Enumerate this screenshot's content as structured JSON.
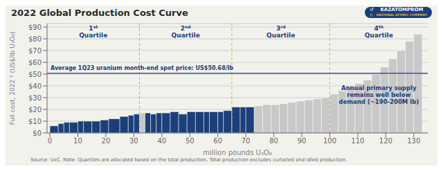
{
  "chart_data": {
    "type": "bar",
    "title": "2022 Global Production Cost Curve",
    "x_label": "million pounds U₃O₈",
    "y_label": "Full cost, 2022 ¹ (US$/lb U₃O₈)",
    "x": [
      0,
      3,
      5,
      7,
      10,
      12,
      15,
      18,
      21,
      25,
      28,
      30,
      32,
      34,
      36,
      38,
      40,
      43,
      46,
      49,
      52,
      55,
      57,
      60,
      62,
      65,
      68,
      70,
      73,
      76,
      79,
      82,
      85,
      88,
      91,
      94,
      97,
      100,
      103,
      106,
      109,
      112,
      115,
      118,
      121,
      124,
      127,
      130
    ],
    "widths": [
      3,
      2,
      2,
      3,
      2,
      3,
      3,
      3,
      4,
      3,
      2,
      2,
      2,
      2,
      2,
      2,
      3,
      3,
      3,
      3,
      3,
      2,
      3,
      2,
      3,
      3,
      2,
      3,
      3,
      3,
      3,
      3,
      3,
      3,
      3,
      3,
      3,
      3,
      3,
      3,
      3,
      3,
      3,
      3,
      3,
      3,
      3,
      3
    ],
    "values": [
      6,
      8,
      9,
      9,
      10,
      10,
      10,
      11,
      12,
      14,
      15,
      16,
      17,
      17,
      16,
      17,
      17,
      18,
      16,
      18,
      18,
      18,
      18,
      18,
      19,
      22,
      22,
      22,
      23,
      24,
      24,
      25,
      26,
      27,
      28,
      29,
      30,
      33,
      36,
      39,
      42,
      45,
      50,
      56,
      63,
      70,
      78,
      84
    ],
    "colors": [
      "#1b3f7a",
      "#1b3f7a",
      "#1b3f7a",
      "#1b3f7a",
      "#1b3f7a",
      "#1b3f7a",
      "#1b3f7a",
      "#1b3f7a",
      "#1b3f7a",
      "#1b3f7a",
      "#1b3f7a",
      "#1b3f7a",
      "#c8c8c8",
      "#1b3f7a",
      "#1b3f7a",
      "#1b3f7a",
      "#1b3f7a",
      "#1b3f7a",
      "#1b3f7a",
      "#1b3f7a",
      "#1b3f7a",
      "#1b3f7a",
      "#1b3f7a",
      "#1b3f7a",
      "#1b3f7a",
      "#1b3f7a",
      "#1b3f7a",
      "#1b3f7a",
      "#c8c8c8",
      "#c8c8c8",
      "#c8c8c8",
      "#c8c8c8",
      "#c8c8c8",
      "#c8c8c8",
      "#c8c8c8",
      "#c8c8c8",
      "#c8c8c8",
      "#c8c8c8",
      "#c8c8c8",
      "#c8c8c8",
      "#c8c8c8",
      "#c8c8c8",
      "#c8c8c8",
      "#c8c8c8",
      "#c8c8c8",
      "#c8c8c8",
      "#c8c8c8",
      "#c8c8c8"
    ],
    "xlim": [
      -1,
      135
    ],
    "xticks": [
      0,
      10,
      20,
      30,
      40,
      50,
      60,
      70,
      80,
      90,
      100,
      110,
      120,
      130
    ],
    "ylim": [
      0,
      93
    ],
    "yticks": [
      {
        "value": 0,
        "label": "$0"
      },
      {
        "value": 10,
        "label": "$10"
      },
      {
        "value": 20,
        "label": "$20"
      },
      {
        "value": 30,
        "label": "$30"
      },
      {
        "value": 40,
        "label": "$40"
      },
      {
        "value": 50,
        "label": "$50"
      },
      {
        "value": 60,
        "label": "$60"
      },
      {
        "value": 70,
        "label": "$70"
      },
      {
        "value": 80,
        "label": "$80"
      },
      {
        "value": 90,
        "label": "$90"
      }
    ],
    "grid": true,
    "reference_line": {
      "value": 50.68,
      "label": "Average 1Q23 uranium month-end spot price: US$50.68/lb",
      "color": "#1b3f7a"
    },
    "quartile_lines": {
      "values": [
        32,
        65,
        100
      ],
      "labels": [
        "1st\nQuartile",
        "2nd\nQuartile",
        "3rd\nQuartile",
        "4th\nQuartile"
      ],
      "color": "#f0a830",
      "label_color": "#1b3f7a"
    },
    "annotation": {
      "text": "Annual primary supply\nremains well below\ndemand (~190-200M lb)",
      "color": "#1b3f7a"
    },
    "source": "Source: UxC. Note: Quartiles are allocated based on the total production. Total production excludes curtailed and idled production.",
    "logo": {
      "text": [
        "KAZATOMPROM",
        "NATIONAL ATOMIC COMPANY"
      ],
      "symbols": [
        "↺",
        "↻"
      ],
      "colors": [
        "#1b3f7a",
        "#f0a830"
      ]
    },
    "background_color": "#f2f2ed"
  }
}
